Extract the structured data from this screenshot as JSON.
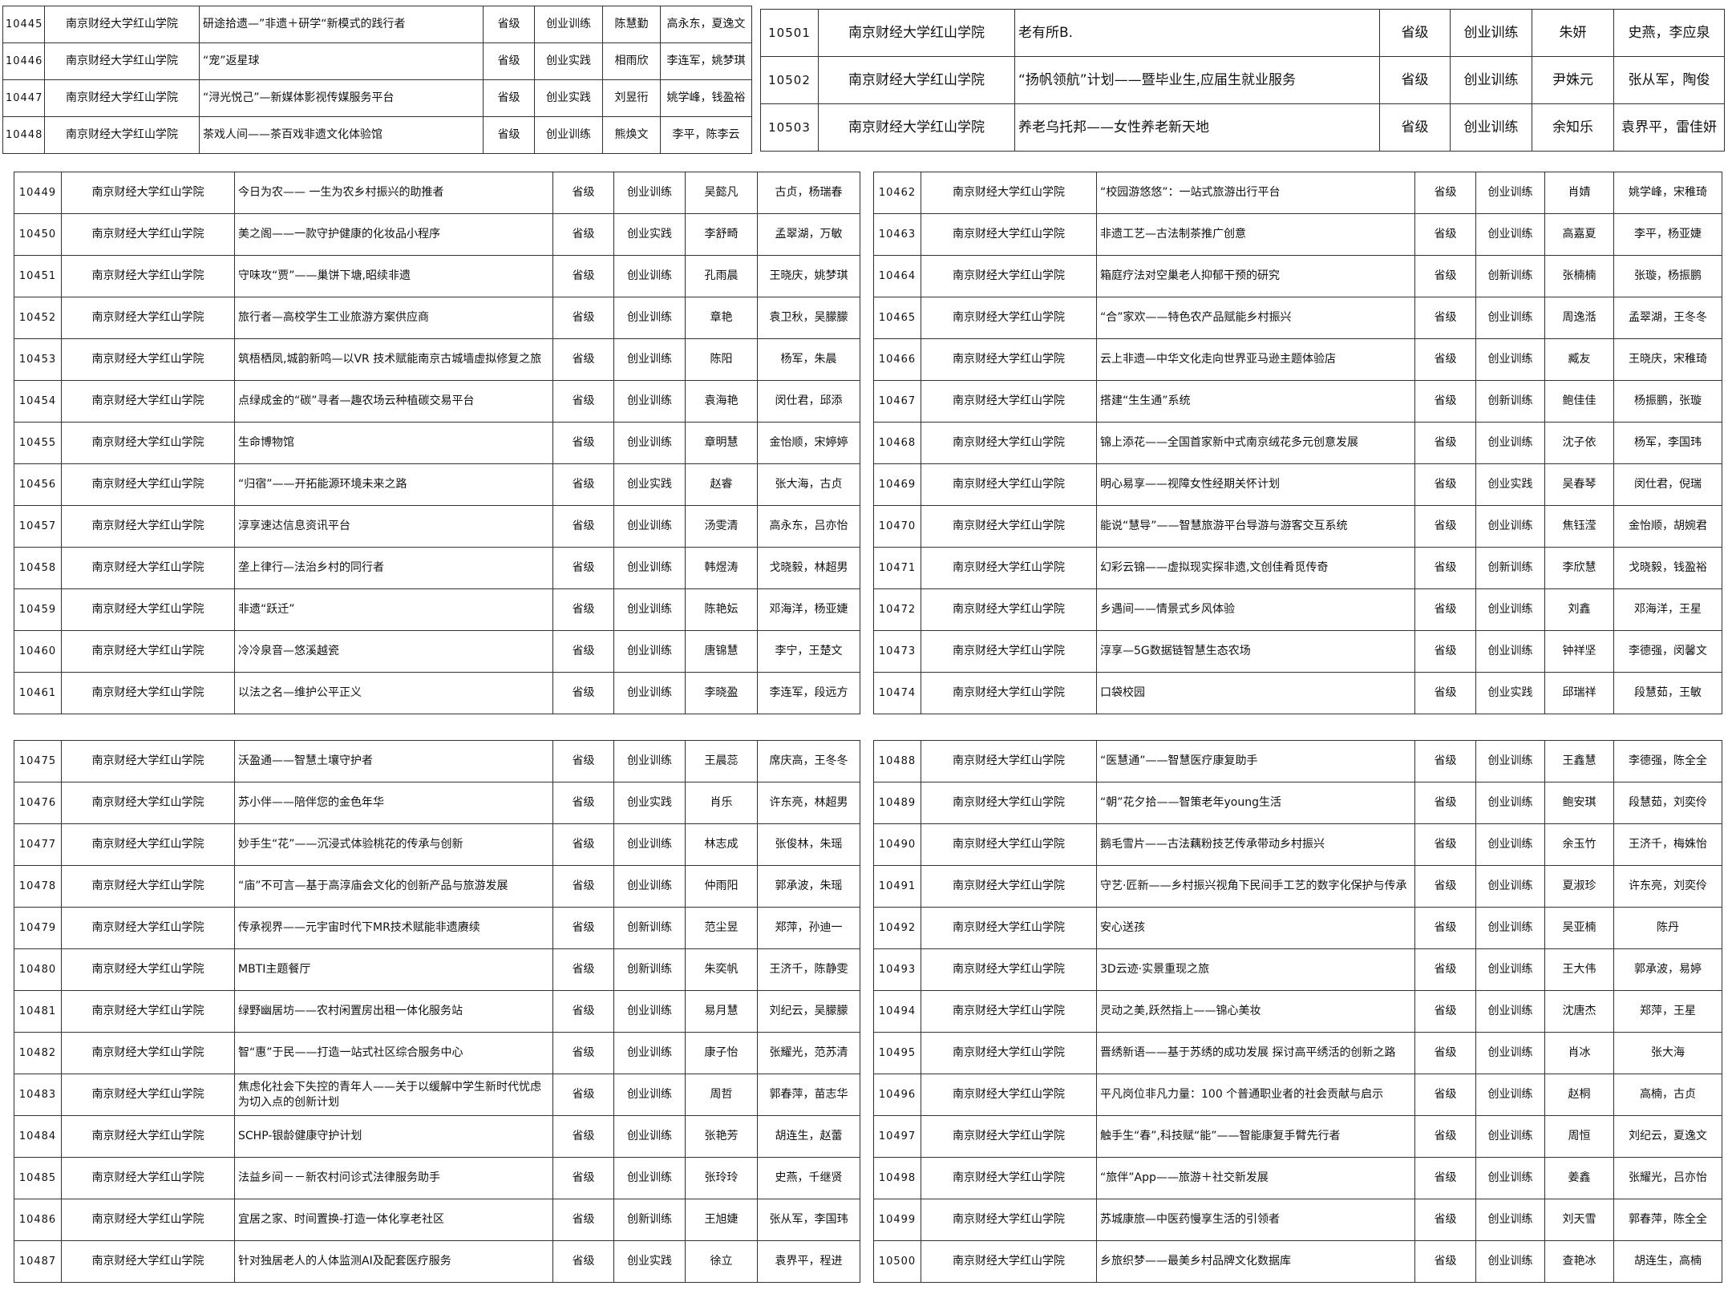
{
  "tables": [
    {
      "rows": [
        [
          "10445",
          "南京财经大学红山学院",
          "研途拾遗—”非遗＋研学“新模式的践行者",
          "省级",
          "创业训练",
          "陈慧勤",
          "高永东，夏逸文"
        ],
        [
          "10446",
          "南京财经大学红山学院",
          "“宠”返星球",
          "省级",
          "创业实践",
          "相雨欣",
          "李连军，姚梦琪"
        ],
        [
          "10447",
          "南京财经大学红山学院",
          "“浔光悦己”—新媒体影视传媒服务平台",
          "省级",
          "创业实践",
          "刘昱衎",
          "姚学峰，钱盈裕"
        ],
        [
          "10448",
          "南京财经大学红山学院",
          "茶戏人间——茶百戏非遗文化体验馆",
          "省级",
          "创业训练",
          "熊焕文",
          "李平，陈李云"
        ]
      ]
    },
    {
      "rows": [
        [
          "10501",
          "南京财经大学红山学院",
          "老有所B.",
          "省级",
          "创业训练",
          "朱妍",
          "史燕，李应泉"
        ],
        [
          "10502",
          "南京财经大学红山学院",
          "“扬帆领航”计划——暨毕业生,应届生就业服务",
          "省级",
          "创业训练",
          "尹姝元",
          "张从军，陶俊"
        ],
        [
          "10503",
          "南京财经大学红山学院",
          "养老乌托邦——女性养老新天地",
          "省级",
          "创业训练",
          "余知乐",
          "袁界平，雷佳妍"
        ]
      ]
    },
    {
      "rows": [
        [
          "10449",
          "南京财经大学红山学院",
          "今日为农—— 一生为农乡村振兴的助推者",
          "省级",
          "创业训练",
          "吴懿凡",
          "古贞，杨瑞春"
        ],
        [
          "10450",
          "南京财经大学红山学院",
          "美之阁——一款守护健康的化妆品小程序",
          "省级",
          "创业实践",
          "李舒畸",
          "孟翠湖，万敏"
        ],
        [
          "10451",
          "南京财经大学红山学院",
          "守味攻“贾”——巢饼下塘,昭续非遗",
          "省级",
          "创业训练",
          "孔雨晨",
          "王晓庆，姚梦琪"
        ],
        [
          "10452",
          "南京财经大学红山学院",
          "旅行者—高校学生工业旅游方案供应商",
          "省级",
          "创业训练",
          "章艳",
          "袁卫秋，吴朦朦"
        ],
        [
          "10453",
          "南京财经大学红山学院",
          "筑梧栖凤,城韵新鸣—以VR 技术赋能南京古城墙虚拟修复之旅",
          "省级",
          "创业训练",
          "陈阳",
          "杨军，朱晨"
        ],
        [
          "10454",
          "南京财经大学红山学院",
          "点绿成金的“碳”寻者—趣农场云种植碳交易平台",
          "省级",
          "创业训练",
          "袁海艳",
          "闵仕君，邱添"
        ],
        [
          "10455",
          "南京财经大学红山学院",
          "生命博物馆",
          "省级",
          "创业训练",
          "章明慧",
          "金怡顺，宋婷婷"
        ],
        [
          "10456",
          "南京财经大学红山学院",
          "“归宿”——开拓能源环境未来之路",
          "省级",
          "创业实践",
          "赵睿",
          "张大海，古贞"
        ],
        [
          "10457",
          "南京财经大学红山学院",
          "淳享速达信息资讯平台",
          "省级",
          "创业训练",
          "汤雯清",
          "高永东，吕亦怡"
        ],
        [
          "10458",
          "南京财经大学红山学院",
          "垄上律行—法治乡村的同行者",
          "省级",
          "创业训练",
          "韩煜涛",
          "戈晓毅，林超男"
        ],
        [
          "10459",
          "南京财经大学红山学院",
          "非遗“跃迁”",
          "省级",
          "创业训练",
          "陈艳妘",
          "邓海洋，杨亚婕"
        ],
        [
          "10460",
          "南京财经大学红山学院",
          "冷冷泉音—悠溪越瓷",
          "省级",
          "创业训练",
          "唐锦慧",
          "李宁，王楚文"
        ],
        [
          "10461",
          "南京财经大学红山学院",
          "以法之名—维护公平正义",
          "省级",
          "创业训练",
          "李晓盈",
          "李连军，段远方"
        ]
      ]
    },
    {
      "rows": [
        [
          "10462",
          "南京财经大学红山学院",
          "“校园游悠悠”：一站式旅游出行平台",
          "省级",
          "创业训练",
          "肖婧",
          "姚学峰，宋稚琦"
        ],
        [
          "10463",
          "南京财经大学红山学院",
          "非遗工艺—古法制茶推广创意",
          "省级",
          "创业训练",
          "高嘉夏",
          "李平，杨亚婕"
        ],
        [
          "10464",
          "南京财经大学红山学院",
          "箱庭疗法对空巢老人抑郁干预的研究",
          "省级",
          "创新训练",
          "张楠楠",
          "张璇，杨振鹏"
        ],
        [
          "10465",
          "南京财经大学红山学院",
          "“合”家欢——特色农产品赋能乡村振兴",
          "省级",
          "创业训练",
          "周逸湉",
          "孟翠湖，王冬冬"
        ],
        [
          "10466",
          "南京财经大学红山学院",
          "云上非遗—中华文化走向世界亚马逊主题体验店",
          "省级",
          "创业训练",
          "臧友",
          "王晓庆，宋稚琦"
        ],
        [
          "10467",
          "南京财经大学红山学院",
          "搭建“生生通”系统",
          "省级",
          "创新训练",
          "鲍佳佳",
          "杨振鹏，张璇"
        ],
        [
          "10468",
          "南京财经大学红山学院",
          "锦上添花——全国首家新中式南京绒花多元创意发展",
          "省级",
          "创业训练",
          "沈子依",
          "杨军，李国玮"
        ],
        [
          "10469",
          "南京财经大学红山学院",
          "明心易享——视障女性经期关怀计划",
          "省级",
          "创业实践",
          "吴春琴",
          "闵仕君，倪瑞"
        ],
        [
          "10470",
          "南京财经大学红山学院",
          "能说“慧导”——智慧旅游平台导游与游客交互系统",
          "省级",
          "创业训练",
          "焦钰滢",
          "金怡顺，胡婉君"
        ],
        [
          "10471",
          "南京财经大学红山学院",
          "幻彩云锦——虚拟现实探非遗,文创佳肴觅传奇",
          "省级",
          "创新训练",
          "李欣慧",
          "戈晓毅，钱盈裕"
        ],
        [
          "10472",
          "南京财经大学红山学院",
          "乡遇间——情景式乡风体验",
          "省级",
          "创业训练",
          "刘鑫",
          "邓海洋，王星"
        ],
        [
          "10473",
          "南京财经大学红山学院",
          "淳享—5G数据链智慧生态农场",
          "省级",
          "创业训练",
          "钟祥坚",
          "李德强，闵馨文"
        ],
        [
          "10474",
          "南京财经大学红山学院",
          "口袋校园",
          "省级",
          "创业实践",
          "邱瑞祥",
          "段慧茹，王敏"
        ]
      ]
    },
    {
      "rows": [
        [
          "10475",
          "南京财经大学红山学院",
          "沃盈通——智慧土壤守护者",
          "省级",
          "创业训练",
          "王晨蕊",
          "席庆高，王冬冬"
        ],
        [
          "10476",
          "南京财经大学红山学院",
          "苏小伴——陪伴您的金色年华",
          "省级",
          "创业实践",
          "肖乐",
          "许东亮，林超男"
        ],
        [
          "10477",
          "南京财经大学红山学院",
          "妙手生“花”——沉浸式体验桃花的传承与创新",
          "省级",
          "创业训练",
          "林志成",
          "张俊林，朱瑶"
        ],
        [
          "10478",
          "南京财经大学红山学院",
          "“庙”不可言—基于高淳庙会文化的创新产品与旅游发展",
          "省级",
          "创业训练",
          "仲雨阳",
          "郭承波，朱瑶"
        ],
        [
          "10479",
          "南京财经大学红山学院",
          "传承视界——元宇宙时代下MR技术赋能非遗赓续",
          "省级",
          "创新训练",
          "范尘昱",
          "郑萍，孙迪一"
        ],
        [
          "10480",
          "南京财经大学红山学院",
          "MBTI主题餐厅",
          "省级",
          "创新训练",
          "朱奕帆",
          "王济千，陈静雯"
        ],
        [
          "10481",
          "南京财经大学红山学院",
          "绿野幽居坊——农村闲置房出租一体化服务站",
          "省级",
          "创业训练",
          "易月慧",
          "刘纪云，吴朦朦"
        ],
        [
          "10482",
          "南京财经大学红山学院",
          "智“惠”于民——打造一站式社区综合服务中心",
          "省级",
          "创业训练",
          "康子怡",
          "张耀光，范苏清"
        ],
        [
          "10483",
          "南京财经大学红山学院",
          "焦虑化社会下失控的青年人——关于以缓解中学生新时代忧虑为切入点的创新计划",
          "省级",
          "创业训练",
          "周哲",
          "郭春萍，苗志华"
        ],
        [
          "10484",
          "南京财经大学红山学院",
          "SCHP-银龄健康守护计划",
          "省级",
          "创业训练",
          "张艳芳",
          "胡连生，赵蕾"
        ],
        [
          "10485",
          "南京财经大学红山学院",
          "法益乡间－－新农村问诊式法律服务助手",
          "省级",
          "创业训练",
          "张玲玲",
          "史燕，千继贤"
        ],
        [
          "10486",
          "南京财经大学红山学院",
          "宜居之家、时间置换-打造一体化享老社区",
          "省级",
          "创新训练",
          "王旭婕",
          "张从军，李国玮"
        ],
        [
          "10487",
          "南京财经大学红山学院",
          "针对独居老人的人体监测AI及配套医疗服务",
          "省级",
          "创业实践",
          "徐立",
          "袁界平，程进"
        ]
      ]
    },
    {
      "rows": [
        [
          "10488",
          "南京财经大学红山学院",
          "“医慧通”——智慧医疗康复助手",
          "省级",
          "创业训练",
          "王鑫慧",
          "李德强，陈全全"
        ],
        [
          "10489",
          "南京财经大学红山学院",
          "“朝”花夕拾——智策老年young生活",
          "省级",
          "创业训练",
          "鲍安琪",
          "段慧茹，刘奕伶"
        ],
        [
          "10490",
          "南京财经大学红山学院",
          "鹅毛雪片——古法藕粉技艺传承带动乡村振兴",
          "省级",
          "创业训练",
          "余玉竹",
          "王济千，梅姝怡"
        ],
        [
          "10491",
          "南京财经大学红山学院",
          "守艺·匠新——乡村振兴视角下民间手工艺的数字化保护与传承",
          "省级",
          "创业训练",
          "夏淑珍",
          "许东亮，刘奕伶"
        ],
        [
          "10492",
          "南京财经大学红山学院",
          "安心送孩",
          "省级",
          "创业训练",
          "吴亚楠",
          "陈丹"
        ],
        [
          "10493",
          "南京财经大学红山学院",
          "3D云迹·实景重现之旅",
          "省级",
          "创业训练",
          "王大伟",
          "郭承波，易婷"
        ],
        [
          "10494",
          "南京财经大学红山学院",
          "灵动之美,跃然指上——锦心美妆",
          "省级",
          "创业训练",
          "沈唐杰",
          "郑萍，王星"
        ],
        [
          "10495",
          "南京财经大学红山学院",
          "晋绣新语——基于苏绣的成功发展 探讨高平绣活的创新之路",
          "省级",
          "创业训练",
          "肖冰",
          "张大海"
        ],
        [
          "10496",
          "南京财经大学红山学院",
          "平凡岗位非凡力量：100 个普通职业者的社会贡献与启示",
          "省级",
          "创业训练",
          "赵桐",
          "高楠，古贞"
        ],
        [
          "10497",
          "南京财经大学红山学院",
          "触手生“春”,科技赋“能”——智能康复手臂先行者",
          "省级",
          "创业训练",
          "周恒",
          "刘纪云，夏逸文"
        ],
        [
          "10498",
          "南京财经大学红山学院",
          "“旅伴”App——旅游＋社交新发展",
          "省级",
          "创业训练",
          "姜鑫",
          "张耀光，吕亦怡"
        ],
        [
          "10499",
          "南京财经大学红山学院",
          "苏城康旅—中医药慢享生活的引领者",
          "省级",
          "创业训练",
          "刘天雪",
          "郭春萍，陈全全"
        ],
        [
          "10500",
          "南京财经大学红山学院",
          "乡旅织梦——最美乡村品牌文化数据库",
          "省级",
          "创业训练",
          "查艳冰",
          "胡连生，高楠"
        ]
      ]
    }
  ]
}
